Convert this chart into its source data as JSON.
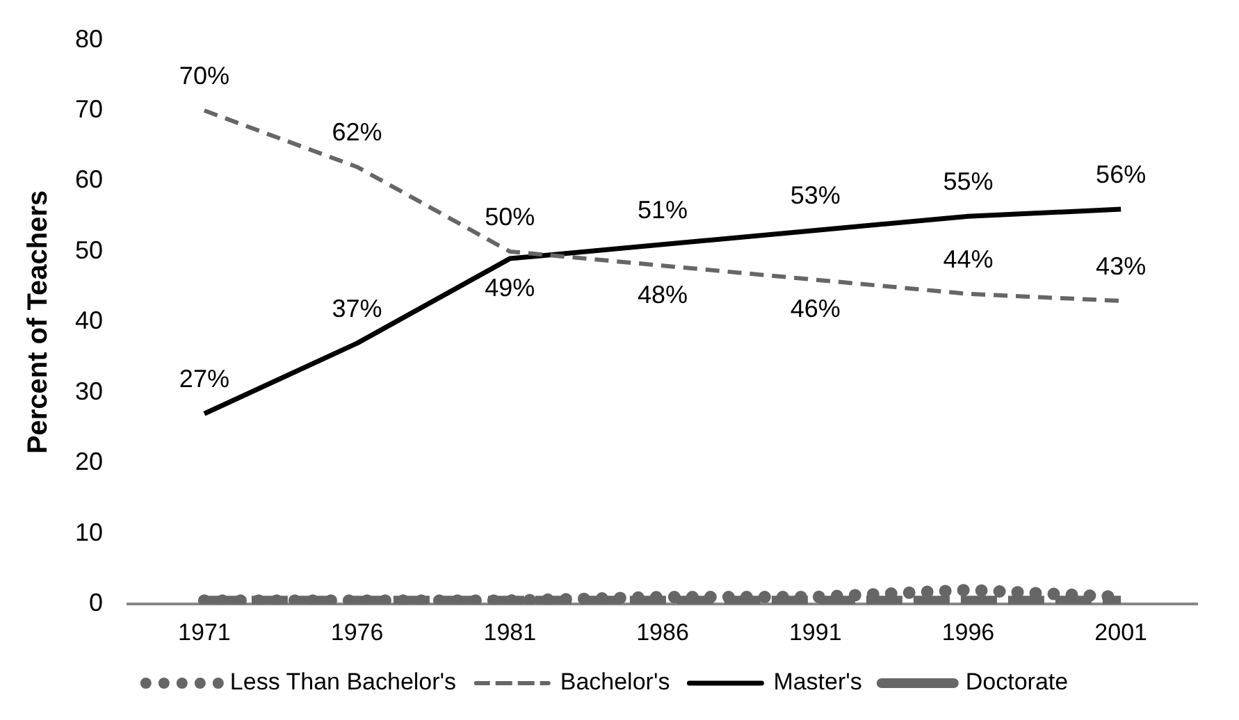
{
  "chart_data": {
    "type": "line",
    "ylabel": "Percent of Teachers",
    "categories": [
      "1971",
      "1976",
      "1981",
      "1986",
      "1991",
      "1996",
      "2001"
    ],
    "series": [
      {
        "name": "Less Than Bachelor's",
        "color": "#666666",
        "line_style": "dotted",
        "values": [
          0.5,
          0.5,
          0.5,
          1,
          1,
          2,
          1
        ]
      },
      {
        "name": "Bachelor's",
        "color": "#666666",
        "line_style": "dashed",
        "values": [
          70,
          62,
          50,
          48,
          46,
          44,
          43
        ],
        "value_labels": [
          "70%",
          "62%",
          "50%",
          "48%",
          "46%",
          "44%",
          "43%"
        ]
      },
      {
        "name": "Master's",
        "color": "#000000",
        "line_style": "solid",
        "values": [
          27,
          37,
          49,
          51,
          53,
          55,
          56
        ],
        "value_labels": [
          "27%",
          "37%",
          "49%",
          "51%",
          "53%",
          "55%",
          "56%"
        ]
      },
      {
        "name": "Doctorate",
        "color": "#666666",
        "line_style": "dashed",
        "values": [
          0.5,
          0.5,
          0.5,
          0.5,
          0.5,
          0.5,
          0.5
        ]
      }
    ],
    "ylim": [
      0,
      80
    ],
    "yticks": [
      0,
      10,
      20,
      30,
      40,
      50,
      60,
      70,
      80
    ],
    "grid": false,
    "legend": "bottom",
    "marker": "none"
  }
}
